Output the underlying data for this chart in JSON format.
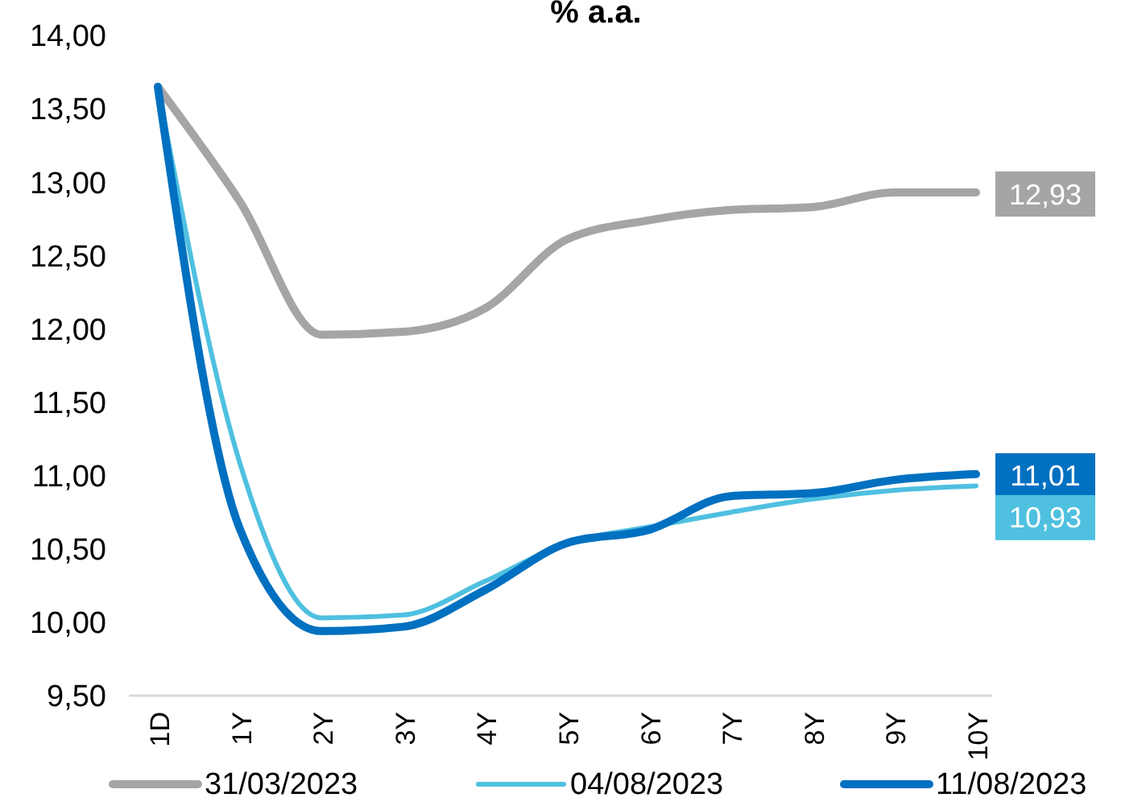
{
  "chart_data": {
    "type": "line",
    "title": "% a.a.",
    "categories": [
      "1D",
      "1Y",
      "2Y",
      "3Y",
      "4Y",
      "5Y",
      "6Y",
      "7Y",
      "8Y",
      "9Y",
      "10Y"
    ],
    "series": [
      {
        "name": "31/03/2023",
        "color": "#a5a5a5",
        "values": [
          13.65,
          12.87,
          11.96,
          11.98,
          12.14,
          12.61,
          12.74,
          12.81,
          12.83,
          12.93,
          12.93
        ],
        "value_labels": [
          null,
          null,
          null,
          null,
          null,
          null,
          null,
          null,
          null,
          null,
          "12,93"
        ]
      },
      {
        "name": "04/08/2023",
        "color": "#4fc0e0",
        "values": [
          13.65,
          11.09,
          10.03,
          10.05,
          10.28,
          10.54,
          10.65,
          10.75,
          10.84,
          10.9,
          10.93
        ],
        "value_labels": [
          null,
          null,
          null,
          null,
          null,
          null,
          null,
          null,
          null,
          null,
          "10,93"
        ]
      },
      {
        "name": "11/08/2023",
        "color": "#0070c0",
        "values": [
          13.65,
          10.64,
          9.94,
          9.97,
          10.22,
          10.54,
          10.63,
          10.86,
          10.88,
          10.97,
          11.01
        ],
        "value_labels": [
          null,
          null,
          null,
          null,
          null,
          null,
          null,
          null,
          null,
          null,
          "11,01"
        ]
      }
    ],
    "ylim": [
      9.5,
      14
    ],
    "yticks": [
      {
        "value": 9.5,
        "label": "9,50"
      },
      {
        "value": 10,
        "label": "10,00"
      },
      {
        "value": 10.5,
        "label": "10,50"
      },
      {
        "value": 11,
        "label": "11,00"
      },
      {
        "value": 11.5,
        "label": "11,50"
      },
      {
        "value": 12,
        "label": "12,00"
      },
      {
        "value": 12.5,
        "label": "12,50"
      },
      {
        "value": 13,
        "label": "13,00"
      },
      {
        "value": 13.5,
        "label": "13,50"
      },
      {
        "value": 14,
        "label": "14,00"
      }
    ],
    "grid": false,
    "legend": "bottom",
    "marker": "none",
    "line_style": "solid"
  }
}
